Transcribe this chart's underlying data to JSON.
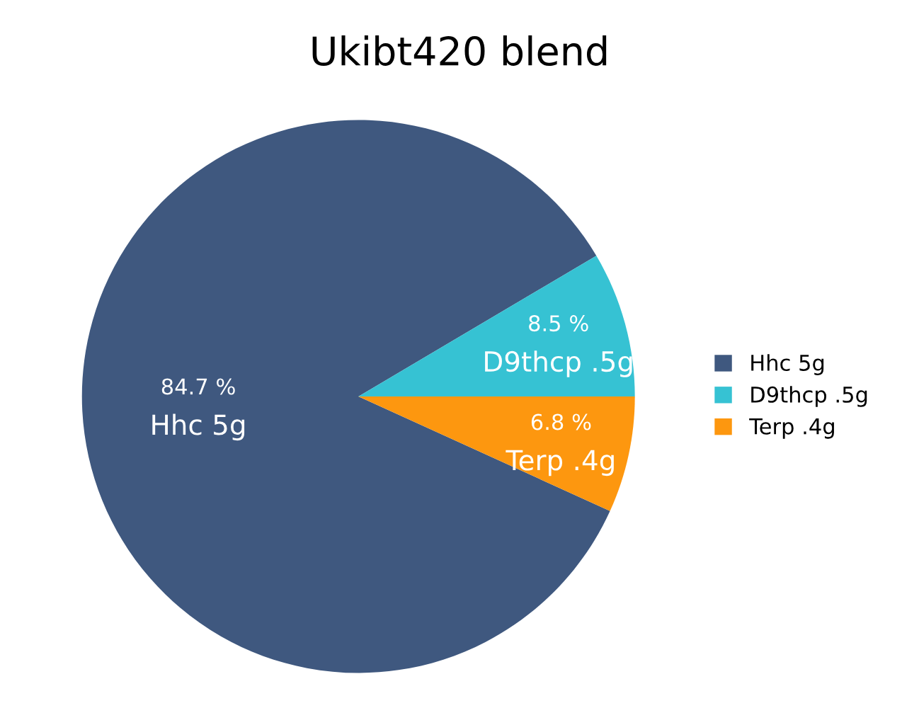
{
  "chart_data": {
    "type": "pie",
    "title": "Ukibt420 blend",
    "categories": [
      "Hhc 5g",
      "D9thcp .5g",
      "Terp .4g"
    ],
    "values": [
      84.7,
      8.5,
      6.8
    ],
    "value_labels": [
      "84.7 %",
      "8.5 %",
      "6.8 %"
    ],
    "colors": [
      "#3f587f",
      "#36c2d3",
      "#fd970f"
    ],
    "legend": "right"
  }
}
